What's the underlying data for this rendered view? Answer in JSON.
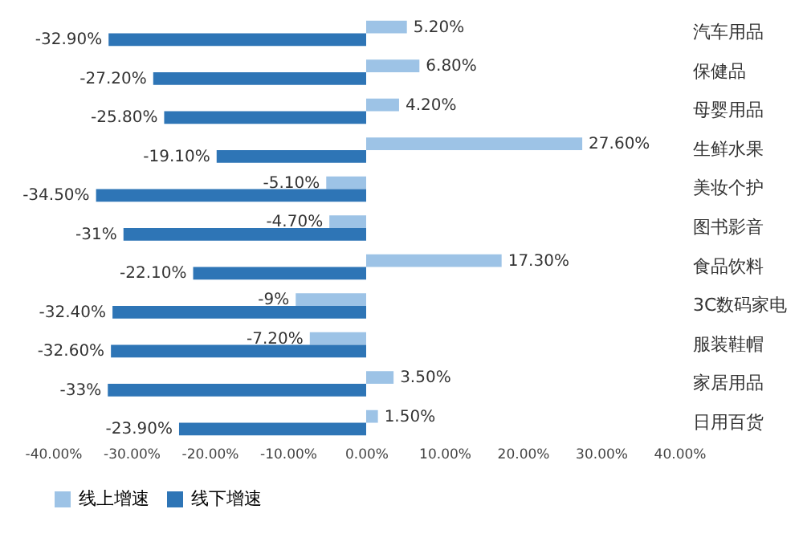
{
  "chart_data": {
    "type": "bar",
    "orientation": "horizontal",
    "categories": [
      "汽车用品",
      "保健品",
      "母婴用品",
      "生鲜水果",
      "美妆个护",
      "图书影音",
      "食品饮料",
      "3C数码家电",
      "服装鞋帽",
      "家居用品",
      "日用百货"
    ],
    "series": [
      {
        "name": "线上增速",
        "color": "#9dc3e6",
        "values": [
          5.2,
          6.8,
          4.2,
          27.6,
          -5.1,
          -4.7,
          17.3,
          -9,
          -7.2,
          3.5,
          1.5
        ],
        "value_labels": [
          "5.20%",
          "6.80%",
          "4.20%",
          "27.60%",
          "-5.10%",
          "-4.70%",
          "17.30%",
          "-9%",
          "-7.20%",
          "3.50%",
          "1.50%"
        ]
      },
      {
        "name": "线下增速",
        "color": "#2e75b6",
        "values": [
          -32.9,
          -27.2,
          -25.8,
          -19.1,
          -34.5,
          -31,
          -22.1,
          -32.4,
          -32.6,
          -33,
          -23.9
        ],
        "value_labels": [
          "-32.90%",
          "-27.20%",
          "-25.80%",
          "-19.10%",
          "-34.50%",
          "-31%",
          "-22.10%",
          "-32.40%",
          "-32.60%",
          "-33%",
          "-23.90%"
        ]
      }
    ],
    "xlim": [
      -40,
      40
    ],
    "xticks": [
      {
        "value": -40,
        "label": "-40.00%"
      },
      {
        "value": -30,
        "label": "-30.00%"
      },
      {
        "value": -20,
        "label": "-20.00%"
      },
      {
        "value": -10,
        "label": "-10.00%"
      },
      {
        "value": 0,
        "label": "0.00%"
      },
      {
        "value": 10,
        "label": "10.00%"
      },
      {
        "value": 20,
        "label": "20.00%"
      },
      {
        "value": 30,
        "label": "30.00%"
      },
      {
        "value": 40,
        "label": "40.00%"
      }
    ],
    "legend": "bottom",
    "grid": false
  }
}
